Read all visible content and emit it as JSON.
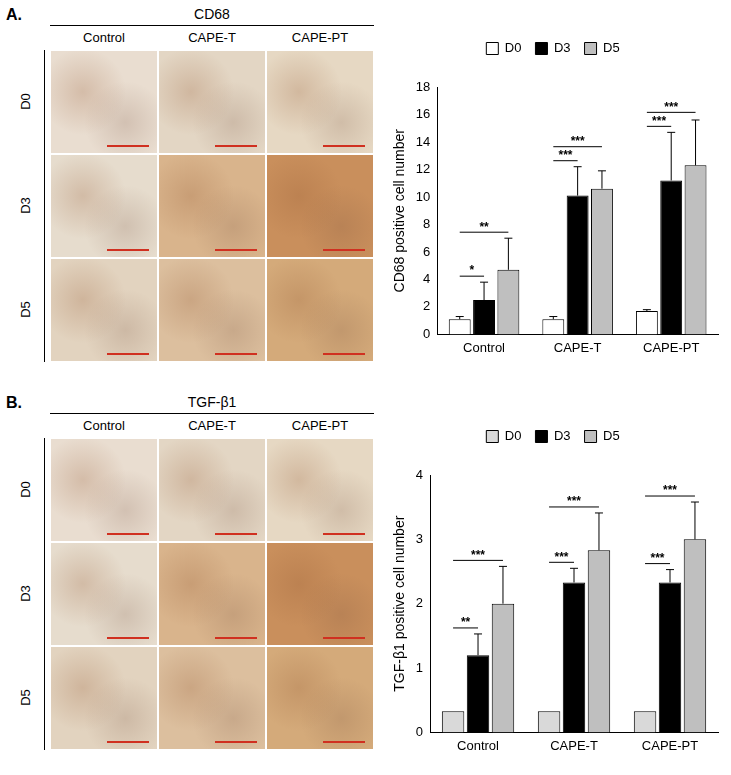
{
  "figure": {
    "panels": [
      {
        "label": "A.",
        "title": "CD68",
        "columns": [
          "Control",
          "CAPE-T",
          "CAPE-PT"
        ],
        "rows": [
          "D0",
          "D3",
          "D5"
        ]
      },
      {
        "label": "B.",
        "title": "TGF-β1",
        "columns": [
          "Control",
          "CAPE-T",
          "CAPE-PT"
        ],
        "rows": [
          "D0",
          "D3",
          "D5"
        ]
      }
    ]
  },
  "chart_data": [
    {
      "type": "bar",
      "y_label": "CD68 positive cell number",
      "categories": [
        "Control",
        "CAPE-T",
        "CAPE-PT"
      ],
      "series": [
        {
          "name": "D0",
          "color": "#ffffff",
          "values": [
            1.1,
            1.1,
            1.7
          ],
          "errors": [
            0.2,
            0.2,
            0.1
          ]
        },
        {
          "name": "D3",
          "color": "#000000",
          "values": [
            2.5,
            10.1,
            11.2
          ],
          "errors": [
            1.3,
            2.1,
            3.5
          ]
        },
        {
          "name": "D5",
          "color": "#bfbfbf",
          "values": [
            4.7,
            10.6,
            12.3
          ],
          "errors": [
            2.3,
            1.3,
            3.3
          ]
        }
      ],
      "ylim": [
        0,
        18
      ],
      "yticks": [
        0,
        2,
        4,
        6,
        8,
        10,
        12,
        14,
        16,
        18
      ],
      "grid": false,
      "legend": "top",
      "annotations": [
        {
          "category": "Control",
          "from": "D0",
          "to": "D3",
          "text": "*"
        },
        {
          "category": "Control",
          "from": "D0",
          "to": "D5",
          "text": "**"
        },
        {
          "category": "CAPE-T",
          "from": "D0",
          "to": "D3",
          "text": "***"
        },
        {
          "category": "CAPE-T",
          "from": "D0",
          "to": "D5",
          "text": "***"
        },
        {
          "category": "CAPE-PT",
          "from": "D0",
          "to": "D3",
          "text": "***"
        },
        {
          "category": "CAPE-PT",
          "from": "D0",
          "to": "D5",
          "text": "***"
        }
      ]
    },
    {
      "type": "bar",
      "y_label": "TGF-β1 positive cell number",
      "categories": [
        "Control",
        "CAPE-T",
        "CAPE-PT"
      ],
      "series": [
        {
          "name": "D0",
          "color": "#d9d9d9",
          "values": [
            0.33,
            0.33,
            0.33
          ],
          "errors": [
            0,
            0,
            0
          ]
        },
        {
          "name": "D3",
          "color": "#000000",
          "values": [
            1.2,
            2.33,
            2.33
          ],
          "errors": [
            0.33,
            0.22,
            0.2
          ]
        },
        {
          "name": "D5",
          "color": "#bfbfbf",
          "values": [
            2.0,
            2.83,
            3.0
          ],
          "errors": [
            0.58,
            0.58,
            0.58
          ]
        }
      ],
      "ylim": [
        0,
        4
      ],
      "yticks": [
        0,
        1,
        2,
        3,
        4
      ],
      "grid": false,
      "legend": "top",
      "annotations": [
        {
          "category": "Control",
          "from": "D0",
          "to": "D3",
          "text": "**"
        },
        {
          "category": "Control",
          "from": "D0",
          "to": "D5",
          "text": "***"
        },
        {
          "category": "CAPE-T",
          "from": "D0",
          "to": "D3",
          "text": "***"
        },
        {
          "category": "CAPE-T",
          "from": "D0",
          "to": "D5",
          "text": "***"
        },
        {
          "category": "CAPE-PT",
          "from": "D0",
          "to": "D3",
          "text": "***"
        },
        {
          "category": "CAPE-PT",
          "from": "D0",
          "to": "D5",
          "text": "***"
        }
      ]
    }
  ]
}
